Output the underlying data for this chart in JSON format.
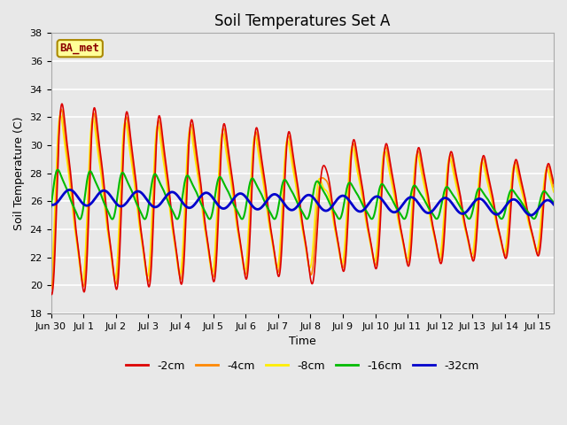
{
  "title": "Soil Temperatures Set A",
  "xlabel": "Time",
  "ylabel": "Soil Temperature (C)",
  "ylim": [
    18,
    38
  ],
  "yticks": [
    18,
    20,
    22,
    24,
    26,
    28,
    30,
    32,
    34,
    36,
    38
  ],
  "x_tick_labels": [
    "Jun 30",
    "Jul 1",
    "Jul 2",
    "Jul 3",
    "Jul 4",
    "Jul 5",
    "Jul 6",
    "Jul 7",
    "Jul 8",
    "Jul 9",
    "Jul 10",
    "Jul 11",
    "Jul 12",
    "Jul 13",
    "Jul 14",
    "Jul 15"
  ],
  "legend_labels": [
    "-2cm",
    "-4cm",
    "-8cm",
    "-16cm",
    "-32cm"
  ],
  "legend_colors": [
    "#dd0000",
    "#ff8800",
    "#ffee00",
    "#00bb00",
    "#0000cc"
  ],
  "line_widths": [
    1.2,
    1.2,
    1.2,
    1.5,
    2.0
  ],
  "bg_color": "#e8e8e8",
  "plot_bg_color": "#e8e8e8",
  "annotation_text": "BA_met",
  "annotation_bg": "#ffff99",
  "annotation_border": "#aa8800",
  "annotation_text_color": "#8b0000",
  "grid_color": "#ffffff",
  "title_fontsize": 12,
  "axis_fontsize": 9,
  "tick_fontsize": 8
}
